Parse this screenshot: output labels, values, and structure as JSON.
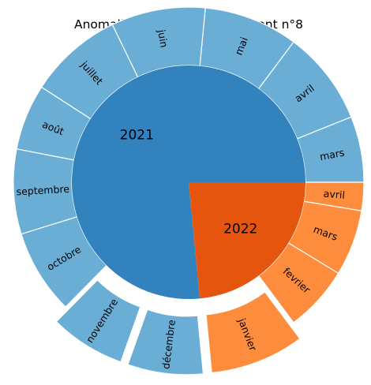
{
  "title": "Anomalies dans l'arrondissement n°8",
  "colors": {
    "inner_2021": "#3282BE",
    "inner_2022": "#E6550D",
    "outer_2021": "#6AAED6",
    "outer_2022": "#FD8D3C",
    "separator": "#FFFFFF"
  },
  "chart_data": {
    "type": "pie",
    "subtype": "nested-donut",
    "title": "Anomalies dans l'arrondissement n°8",
    "inner": [
      {
        "label": "2021",
        "value": 88,
        "color": "#3282BE"
      },
      {
        "label": "2022",
        "value": 27,
        "color": "#E6550D"
      }
    ],
    "outer": [
      {
        "label": "mars",
        "year": "2021",
        "value": 7,
        "explode": false
      },
      {
        "label": "avril",
        "year": "2021",
        "value": 10,
        "explode": false
      },
      {
        "label": "mai",
        "year": "2021",
        "value": 10,
        "explode": false
      },
      {
        "label": "juin",
        "year": "2021",
        "value": 10,
        "explode": false
      },
      {
        "label": "juillet",
        "year": "2021",
        "value": 10,
        "explode": false
      },
      {
        "label": "août",
        "year": "2021",
        "value": 7,
        "explode": false
      },
      {
        "label": "septembre",
        "year": "2021",
        "value": 9,
        "explode": false
      },
      {
        "label": "octobre",
        "year": "2021",
        "value": 9,
        "explode": false
      },
      {
        "label": "novembre",
        "year": "2021",
        "value": 8,
        "explode": true
      },
      {
        "label": "décembre",
        "year": "2021",
        "value": 8,
        "explode": true
      },
      {
        "label": "janvier",
        "year": "2022",
        "value": 10,
        "explode": true
      },
      {
        "label": "fevrier",
        "year": "2022",
        "value": 7,
        "explode": false
      },
      {
        "label": "mars",
        "year": "2022",
        "value": 7,
        "explode": false
      },
      {
        "label": "avril",
        "year": "2022",
        "value": 3,
        "explode": false
      }
    ]
  }
}
